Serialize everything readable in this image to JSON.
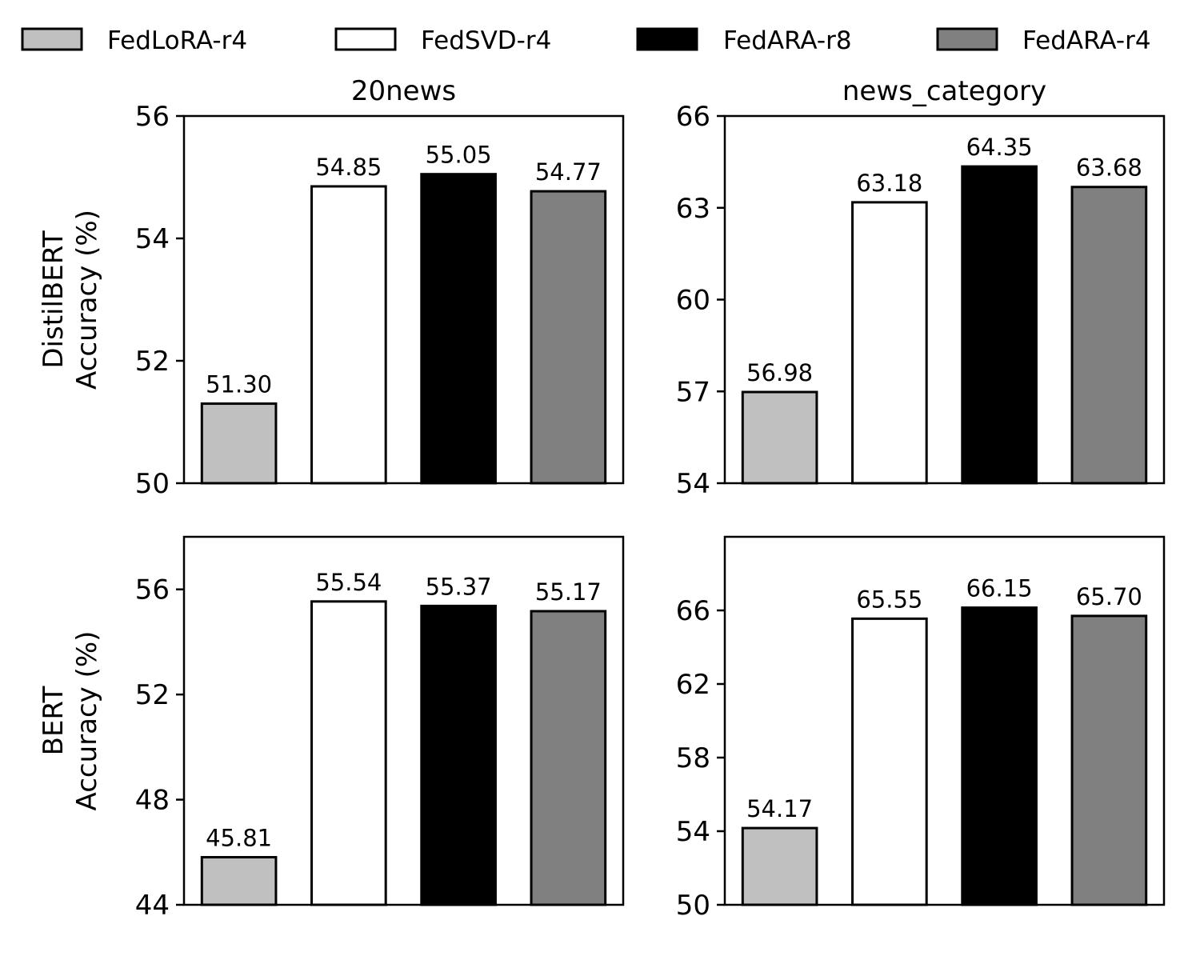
{
  "legend": [
    {
      "label": "FedLoRA-r4",
      "color": "#c0c0c0"
    },
    {
      "label": "FedSVD-r4",
      "color": "#ffffff"
    },
    {
      "label": "FedARA-r8",
      "color": "#000000"
    },
    {
      "label": "FedARA-r4",
      "color": "#808080"
    }
  ],
  "chart_data": [
    {
      "type": "bar",
      "title": "20news",
      "ylabel_lines": [
        "DistilBERT",
        "Accuracy (%)"
      ],
      "categories": [
        "FedLoRA-r4",
        "FedSVD-r4",
        "FedARA-r8",
        "FedARA-r4"
      ],
      "values": [
        51.3,
        54.85,
        55.05,
        54.77
      ],
      "value_labels": [
        "51.30",
        "54.85",
        "55.05",
        "54.77"
      ],
      "ylim": [
        50,
        56
      ],
      "yticks": [
        50,
        52,
        54,
        56
      ]
    },
    {
      "type": "bar",
      "title": "news_category",
      "ylabel_lines": [],
      "categories": [
        "FedLoRA-r4",
        "FedSVD-r4",
        "FedARA-r8",
        "FedARA-r4"
      ],
      "values": [
        56.98,
        63.18,
        64.35,
        63.68
      ],
      "value_labels": [
        "56.98",
        "63.18",
        "64.35",
        "63.68"
      ],
      "ylim": [
        54,
        66
      ],
      "yticks": [
        54,
        57,
        60,
        63,
        66
      ]
    },
    {
      "type": "bar",
      "title": "",
      "ylabel_lines": [
        "BERT",
        "Accuracy (%)"
      ],
      "categories": [
        "FedLoRA-r4",
        "FedSVD-r4",
        "FedARA-r8",
        "FedARA-r4"
      ],
      "values": [
        45.81,
        55.54,
        55.37,
        55.17
      ],
      "value_labels": [
        "45.81",
        "55.54",
        "55.37",
        "55.17"
      ],
      "ylim": [
        44,
        58
      ],
      "yticks": [
        44,
        48,
        52,
        56
      ]
    },
    {
      "type": "bar",
      "title": "",
      "ylabel_lines": [],
      "categories": [
        "FedLoRA-r4",
        "FedSVD-r4",
        "FedARA-r8",
        "FedARA-r4"
      ],
      "values": [
        54.17,
        65.55,
        66.15,
        65.7
      ],
      "value_labels": [
        "54.17",
        "65.55",
        "66.15",
        "65.70"
      ],
      "ylim": [
        50,
        70
      ],
      "yticks": [
        50,
        54,
        58,
        62,
        66
      ]
    }
  ]
}
